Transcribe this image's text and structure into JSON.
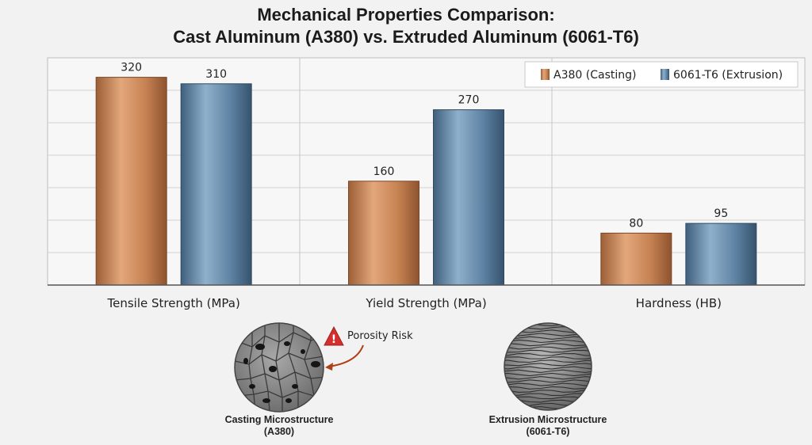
{
  "chart_data": {
    "type": "bar",
    "title": "Mechanical Properties Comparison:",
    "subtitle": "Cast Aluminum (A380) vs. Extruded Aluminum (6061-T6)",
    "categories": [
      "Tensile Strength (MPa)",
      "Yield Strength (MPa)",
      "Hardness (HB)"
    ],
    "series": [
      {
        "name": "A380 (Casting)",
        "values": [
          320,
          160,
          80
        ],
        "color": "#c9895a"
      },
      {
        "name": "6061-T6 (Extrusion)",
        "values": [
          310,
          270,
          95
        ],
        "color": "#5e83a3"
      }
    ],
    "ylim": [
      0,
      350
    ],
    "grid": true,
    "legend": "top-right"
  },
  "annotations": {
    "porosity": "Porosity Risk",
    "casting_label": [
      "Casting Microstructure",
      "(A380)"
    ],
    "extrusion_label": [
      "Extrusion Microstructure",
      "(6061-T6)"
    ]
  }
}
